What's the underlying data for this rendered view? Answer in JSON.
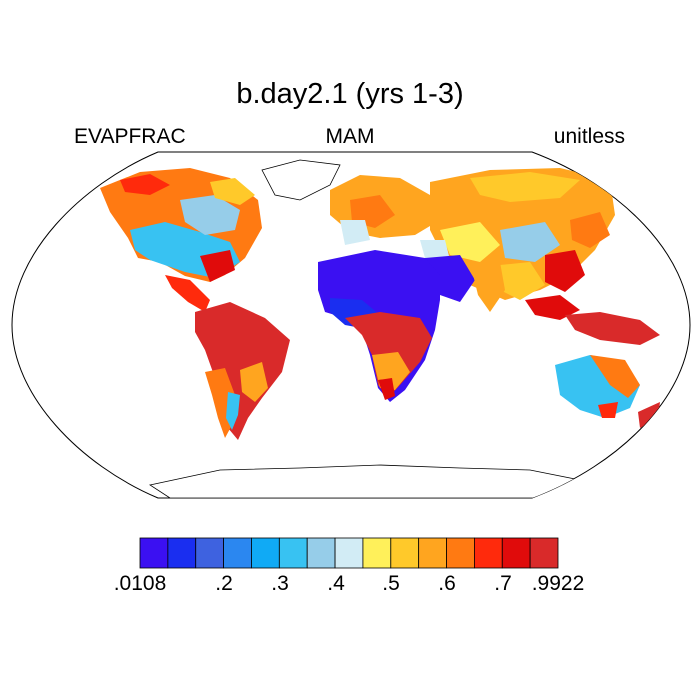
{
  "title": "b.day2.1 (yrs 1-3)",
  "left_label": "EVAPFRAC",
  "center_label": "MAM",
  "right_label": "unitless",
  "colorbar": {
    "colors": [
      "#3b10f2",
      "#1a2ef0",
      "#3e62e0",
      "#2b87f0",
      "#10aaf5",
      "#38c2f2",
      "#96cde9",
      "#d2ecf5",
      "#fff05a",
      "#ffc92a",
      "#ffa51f",
      "#ff7a12",
      "#ff2a0c",
      "#e00b0b",
      "#d92a2a"
    ],
    "tick_labels": [
      ".0108",
      ".2",
      ".3",
      ".4",
      ".5",
      ".6",
      ".7",
      ".9922"
    ]
  }
}
